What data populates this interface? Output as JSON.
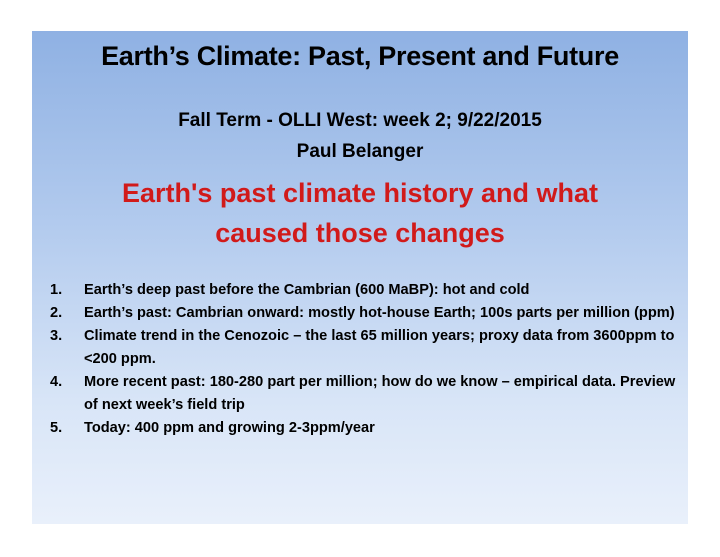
{
  "slide": {
    "title": "Earth’s Climate: Past, Present and Future",
    "subtitle_line1": "Fall Term - OLLI West: week 2; 9/22/2015",
    "subtitle_line2": "Paul Belanger",
    "headline_line1": "Earth's past climate history and what",
    "headline_line2": "caused those changes",
    "agenda": [
      {
        "number": "1.",
        "text": "Earth’s deep past before the Cambrian (600 MaBP): hot and cold"
      },
      {
        "number": "2.",
        "text": "Earth’s past: Cambrian onward: mostly hot-house Earth;  100s parts per million (ppm)"
      },
      {
        "number": "3.",
        "text": "Climate trend in the Cenozoic – the last 65 million years; proxy data from 3600ppm to <200 ppm."
      },
      {
        "number": "4.",
        "text": "More recent past: 180-280 part per million; how do we know – empirical data. Preview of next week’s field trip"
      },
      {
        "number": "5.",
        "text": "Today: 400 ppm and growing 2-3ppm/year"
      }
    ]
  },
  "colors": {
    "headline": "#d11a1a",
    "background_top": "#8fb1e3",
    "background_bottom": "#e9f0fb"
  }
}
